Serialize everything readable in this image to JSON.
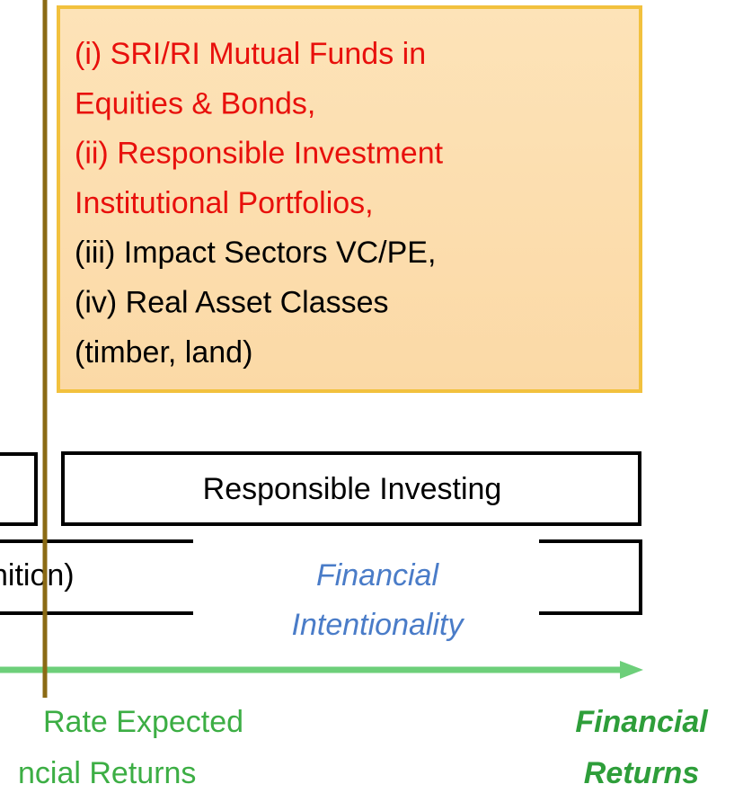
{
  "box": {
    "lines": [
      "(i) SRI/RI Mutual Funds in",
      "Equities & Bonds,",
      "(ii) Responsible Investment",
      "Institutional Portfolios,",
      "(iii) Impact Sectors VC/PE,",
      "(iv) Real Asset Classes",
      "(timber, land)"
    ]
  },
  "responsible": {
    "label": "Responsible Investing"
  },
  "definition": {
    "label": "nition)"
  },
  "intentionality": {
    "lines": [
      "Financial",
      "Intentionality"
    ]
  },
  "axis": {
    "left_lines": [
      "Rate Expected",
      "ncial Returns"
    ],
    "right_lines": [
      "Financial",
      "Returns"
    ]
  }
}
